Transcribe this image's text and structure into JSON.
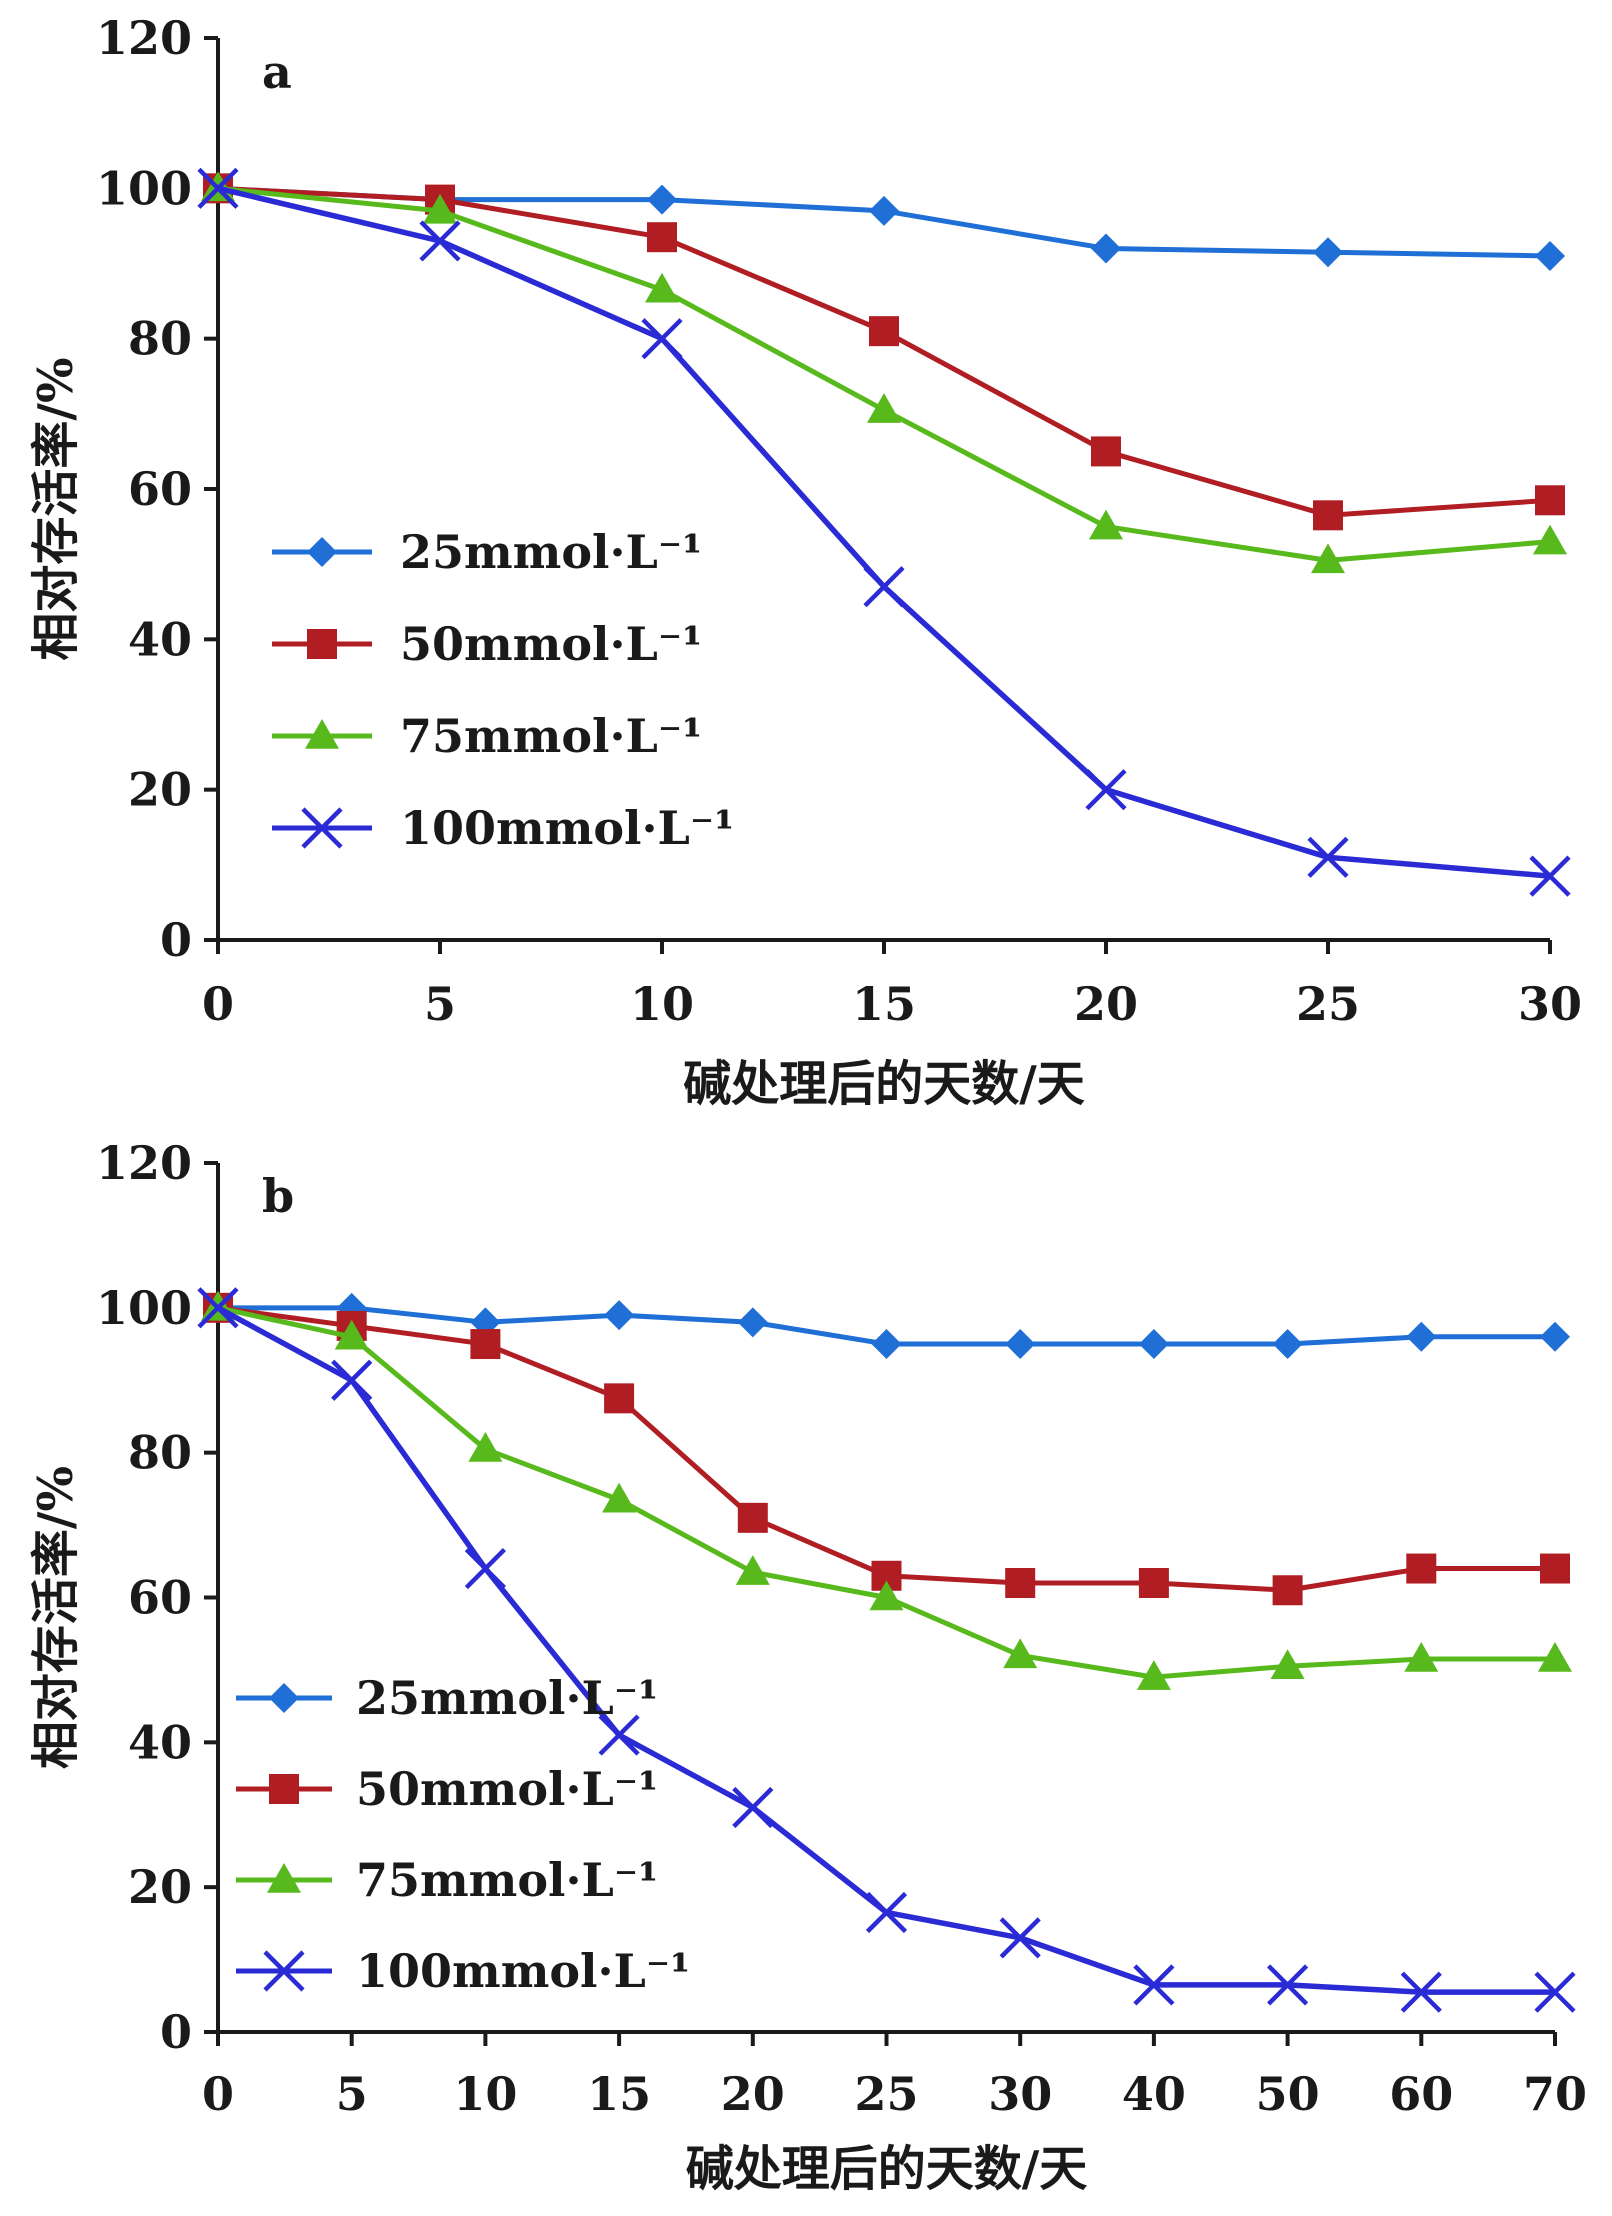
{
  "chart_data": [
    {
      "type": "line",
      "panel_label": "a",
      "xlabel": "碱处理后的天数/天",
      "ylabel": "相对存活率/%",
      "ylim": [
        0,
        120
      ],
      "yticks": [
        "0",
        "20",
        "40",
        "60",
        "80",
        "100",
        "120"
      ],
      "x": [
        0,
        5,
        10,
        15,
        20,
        25,
        30
      ],
      "xticks": [
        "0",
        "5",
        "10",
        "15",
        "20",
        "25",
        "30"
      ],
      "legend_position": "lower-left",
      "grid": false,
      "series": [
        {
          "name": "25mmol·L⁻¹",
          "color": "#1f6fd6",
          "marker": "diamond",
          "values": [
            100,
            98.5,
            98.5,
            97,
            92,
            91.5,
            91
          ]
        },
        {
          "name": "50mmol·L⁻¹",
          "color": "#b01e24",
          "marker": "square",
          "values": [
            100,
            98.5,
            93.5,
            81,
            65,
            56.5,
            58.5
          ]
        },
        {
          "name": "75mmol·L⁻¹",
          "color": "#58b91c",
          "marker": "triangle",
          "values": [
            100,
            97,
            86.5,
            70.5,
            55,
            50.5,
            53
          ]
        },
        {
          "name": "100mmol·L⁻¹",
          "color": "#2b2bd6",
          "marker": "x",
          "values": [
            100,
            93,
            80,
            47,
            20,
            11,
            8.5
          ]
        }
      ]
    },
    {
      "type": "line",
      "panel_label": "b",
      "xlabel": "碱处理后的天数/天",
      "ylabel": "相对存活率/%",
      "ylim": [
        0,
        120
      ],
      "yticks": [
        "0",
        "20",
        "40",
        "60",
        "80",
        "100",
        "120"
      ],
      "x": [
        0,
        5,
        10,
        15,
        20,
        25,
        30,
        40,
        50,
        60,
        70
      ],
      "xticks": [
        "0",
        "5",
        "10",
        "15",
        "20",
        "25",
        "30",
        "40",
        "50",
        "60",
        "70"
      ],
      "legend_position": "lower-left",
      "grid": false,
      "series": [
        {
          "name": "25mmol·L⁻¹",
          "color": "#1f6fd6",
          "marker": "diamond",
          "values": [
            100,
            100,
            98,
            99,
            98,
            95,
            95,
            95,
            95,
            96,
            96
          ]
        },
        {
          "name": "50mmol·L⁻¹",
          "color": "#b01e24",
          "marker": "square",
          "values": [
            100,
            97.5,
            95,
            87.5,
            71,
            63,
            62,
            62,
            61,
            64,
            64
          ]
        },
        {
          "name": "75mmol·L⁻¹",
          "color": "#58b91c",
          "marker": "triangle",
          "values": [
            100,
            96,
            80.5,
            73.5,
            63.5,
            60,
            52,
            49,
            50.5,
            51.5,
            51.5
          ]
        },
        {
          "name": "100mmol·L⁻¹",
          "color": "#2b2bd6",
          "marker": "x",
          "values": [
            100,
            90,
            64,
            41,
            31,
            16.5,
            13,
            6.5,
            6.5,
            5.5,
            5.5
          ]
        }
      ]
    }
  ]
}
